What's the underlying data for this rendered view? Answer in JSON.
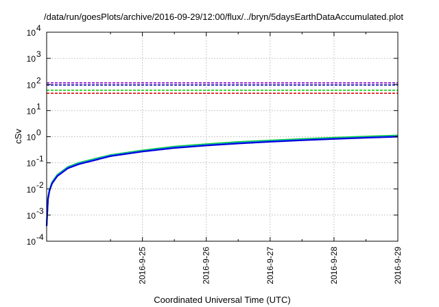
{
  "chart_data": {
    "type": "line",
    "title": "/data/run/goesPlots/archive/2016-09-29/12:00/flux/../bryn/5daysEarthDataAccumulated.plot",
    "xlabel": "Coordinated Universal Time (UTC)",
    "ylabel": "cSv",
    "x_ticks": [
      "2016-9-25",
      "2016-9-26",
      "2016-9-27",
      "2016-9-28",
      "2016-9-29"
    ],
    "xlim": [
      "2016-09-24T00:00",
      "2016-09-29T12:00"
    ],
    "y_scale": "log",
    "ylim": [
      0.0001,
      10000
    ],
    "y_ticks": [
      {
        "base": "10",
        "exp": "-4",
        "value": 0.0001
      },
      {
        "base": "10",
        "exp": "-3",
        "value": 0.001
      },
      {
        "base": "10",
        "exp": "-2",
        "value": 0.01
      },
      {
        "base": "10",
        "exp": "-1",
        "value": 0.1
      },
      {
        "base": "10",
        "exp": "0",
        "value": 1
      },
      {
        "base": "10",
        "exp": "1",
        "value": 10
      },
      {
        "base": "10",
        "exp": "2",
        "value": 100
      },
      {
        "base": "10",
        "exp": "3",
        "value": 1000
      },
      {
        "base": "10",
        "exp": "4",
        "value": 10000
      }
    ],
    "grid": true,
    "series": [
      {
        "color": "#00cc33",
        "style": "solid",
        "x": [
          "2016-09-24T00:00",
          "2016-09-24T00:30",
          "2016-09-24T01:00",
          "2016-09-24T02:00",
          "2016-09-24T04:00",
          "2016-09-24T08:00",
          "2016-09-24T12:00",
          "2016-09-25T00:00",
          "2016-09-25T12:00",
          "2016-09-26T00:00",
          "2016-09-26T12:00",
          "2016-09-27T00:00",
          "2016-09-27T12:00",
          "2016-09-28T00:00",
          "2016-09-28T12:00",
          "2016-09-29T00:00",
          "2016-09-29T12:00"
        ],
        "y": [
          0.00045,
          0.0045,
          0.009,
          0.018,
          0.035,
          0.07,
          0.1,
          0.2,
          0.3,
          0.42,
          0.52,
          0.63,
          0.72,
          0.82,
          0.92,
          1.02,
          1.12
        ]
      },
      {
        "color": "#2299ee",
        "style": "solid",
        "x": [
          "2016-09-24T00:00",
          "2016-09-24T00:30",
          "2016-09-24T01:00",
          "2016-09-24T02:00",
          "2016-09-24T04:00",
          "2016-09-24T08:00",
          "2016-09-24T12:00",
          "2016-09-25T00:00",
          "2016-09-25T12:00",
          "2016-09-26T00:00",
          "2016-09-26T12:00",
          "2016-09-27T00:00",
          "2016-09-27T12:00",
          "2016-09-28T00:00",
          "2016-09-28T12:00",
          "2016-09-29T00:00",
          "2016-09-29T12:00"
        ],
        "y": [
          0.0004,
          0.0042,
          0.0085,
          0.017,
          0.033,
          0.066,
          0.094,
          0.19,
          0.28,
          0.39,
          0.48,
          0.58,
          0.67,
          0.76,
          0.85,
          0.94,
          1.04
        ]
      },
      {
        "color": "#0000dd",
        "style": "solid",
        "x": [
          "2016-09-24T00:00",
          "2016-09-24T00:30",
          "2016-09-24T01:00",
          "2016-09-24T02:00",
          "2016-09-24T04:00",
          "2016-09-24T08:00",
          "2016-09-24T12:00",
          "2016-09-25T00:00",
          "2016-09-25T12:00",
          "2016-09-26T00:00",
          "2016-09-26T12:00",
          "2016-09-27T00:00",
          "2016-09-27T12:00",
          "2016-09-28T00:00",
          "2016-09-28T12:00",
          "2016-09-29T00:00",
          "2016-09-29T12:00"
        ],
        "y": [
          0.00038,
          0.004,
          0.008,
          0.016,
          0.031,
          0.062,
          0.088,
          0.18,
          0.27,
          0.37,
          0.46,
          0.55,
          0.64,
          0.73,
          0.82,
          0.91,
          1.0
        ]
      },
      {
        "color": "#8800cc",
        "style": "dashed",
        "x": [
          "2016-09-24T00:00",
          "2016-09-29T12:00"
        ],
        "y": [
          115,
          115
        ]
      },
      {
        "color": "#0000aa",
        "style": "dashed",
        "x": [
          "2016-09-24T00:00",
          "2016-09-29T12:00"
        ],
        "y": [
          95,
          95
        ]
      },
      {
        "color": "#00cc00",
        "style": "dashed",
        "x": [
          "2016-09-24T00:00",
          "2016-09-29T12:00"
        ],
        "y": [
          60,
          60
        ]
      },
      {
        "color": "#dd0000",
        "style": "dashed",
        "x": [
          "2016-09-24T00:00",
          "2016-09-29T12:00"
        ],
        "y": [
          46,
          46
        ]
      }
    ]
  }
}
